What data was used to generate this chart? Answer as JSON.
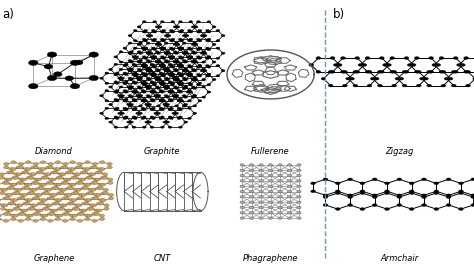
{
  "background_color": "#ffffff",
  "fig_width": 4.74,
  "fig_height": 2.66,
  "dpi": 100,
  "label_a": "a)",
  "label_b": "b)",
  "labels_row1": [
    "Diamond",
    "Graphite",
    "Fullerene"
  ],
  "labels_row2": [
    "Graphene",
    "CNT",
    "Phagraphene"
  ],
  "labels_right_top": "Zigzag",
  "labels_right_bottom": "Armchair",
  "dashed_line_x": 0.685,
  "dashed_line_color": "#5b9bd5",
  "font_size_labels": 6.0,
  "font_size_ab": 8.5,
  "font_style": "italic"
}
